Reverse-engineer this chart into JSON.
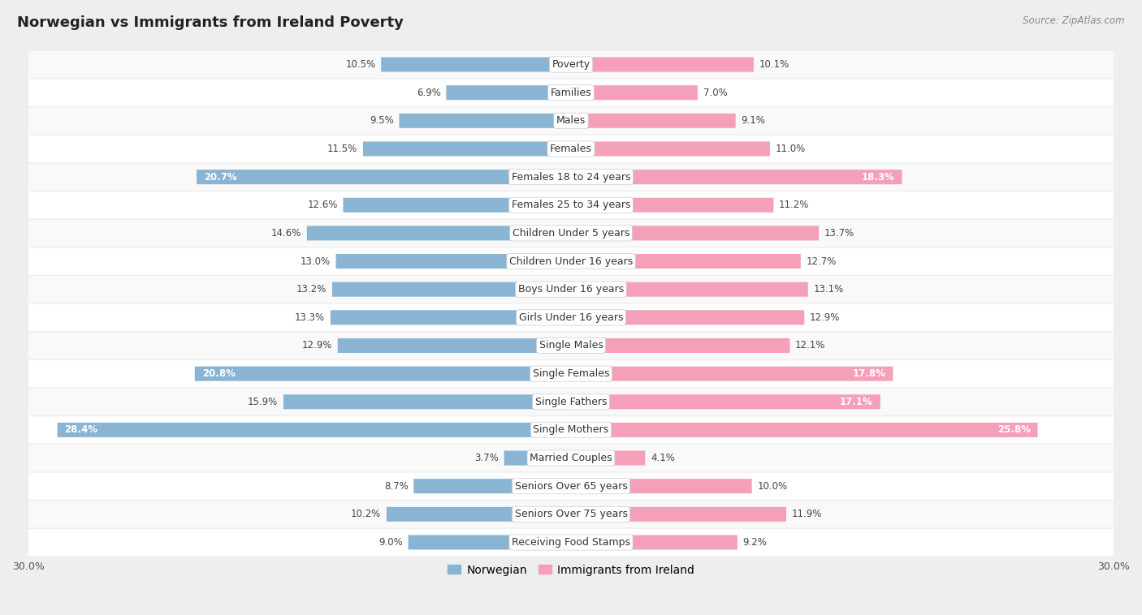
{
  "title": "Norwegian vs Immigrants from Ireland Poverty",
  "source": "Source: ZipAtlas.com",
  "categories": [
    "Poverty",
    "Families",
    "Males",
    "Females",
    "Females 18 to 24 years",
    "Females 25 to 34 years",
    "Children Under 5 years",
    "Children Under 16 years",
    "Boys Under 16 years",
    "Girls Under 16 years",
    "Single Males",
    "Single Females",
    "Single Fathers",
    "Single Mothers",
    "Married Couples",
    "Seniors Over 65 years",
    "Seniors Over 75 years",
    "Receiving Food Stamps"
  ],
  "norwegian": [
    10.5,
    6.9,
    9.5,
    11.5,
    20.7,
    12.6,
    14.6,
    13.0,
    13.2,
    13.3,
    12.9,
    20.8,
    15.9,
    28.4,
    3.7,
    8.7,
    10.2,
    9.0
  ],
  "ireland": [
    10.1,
    7.0,
    9.1,
    11.0,
    18.3,
    11.2,
    13.7,
    12.7,
    13.1,
    12.9,
    12.1,
    17.8,
    17.1,
    25.8,
    4.1,
    10.0,
    11.9,
    9.2
  ],
  "norwegian_color": "#8ab4d4",
  "ireland_color": "#f4a0b8",
  "bar_height": 0.52,
  "max_val": 30.0,
  "background_color": "#eeeeee",
  "row_bg_even": "#f9f9f9",
  "row_bg_odd": "#ffffff",
  "label_fontsize": 9.0,
  "value_fontsize": 8.5,
  "title_fontsize": 13,
  "legend_fontsize": 10,
  "axis_label_fontsize": 9
}
